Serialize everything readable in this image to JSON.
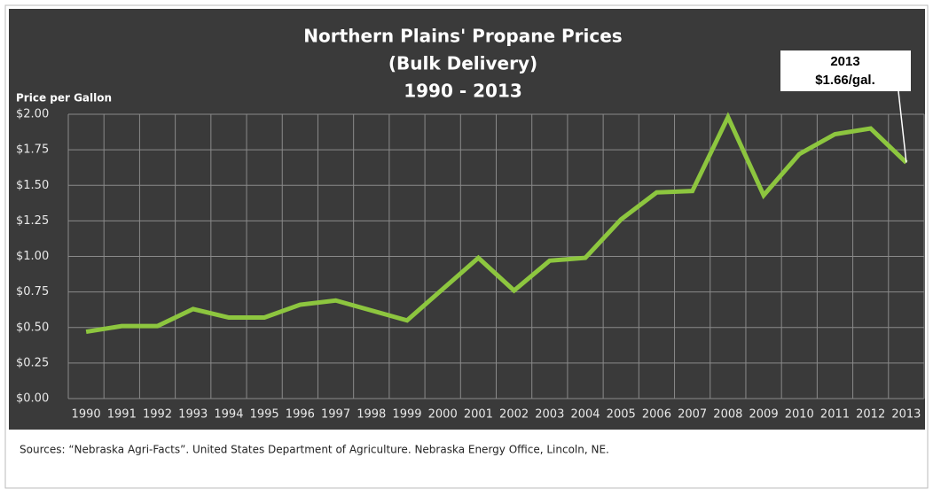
{
  "chart_data": {
    "type": "line",
    "title": [
      "Northern Plains' Propane Prices",
      "(Bulk Delivery)",
      "1990 - 2013"
    ],
    "y_label": "Price per Gallon",
    "annotation": [
      "2013",
      "$1.66/gal."
    ],
    "source": "Sources:  “Nebraska Agri-Facts”.  United States Department of Agriculture.  Nebraska Energy Office, Lincoln, NE.",
    "categories": [
      "1990",
      "1991",
      "1992",
      "1993",
      "1994",
      "1995",
      "1996",
      "1997",
      "1998",
      "1999",
      "2000",
      "2001",
      "2002",
      "2003",
      "2004",
      "2005",
      "2006",
      "2007",
      "2008",
      "2009",
      "2010",
      "2011",
      "2012",
      "2013"
    ],
    "series": [
      {
        "name": "Propane price",
        "color": "#8dc63f",
        "values": [
          0.47,
          0.51,
          0.51,
          0.63,
          0.57,
          0.57,
          0.66,
          0.69,
          0.62,
          0.55,
          0.77,
          0.99,
          0.76,
          0.97,
          0.99,
          1.26,
          1.45,
          1.46,
          1.98,
          1.43,
          1.72,
          1.86,
          1.9,
          1.66
        ]
      }
    ],
    "ylim": [
      0,
      2
    ],
    "yticks": [
      {
        "value": 0,
        "label": "$0.00"
      },
      {
        "value": 0.25,
        "label": "$0.25"
      },
      {
        "value": 0.5,
        "label": "$0.50"
      },
      {
        "value": 0.75,
        "label": "$0.75"
      },
      {
        "value": 1,
        "label": "$1.00"
      },
      {
        "value": 1.25,
        "label": "$1.25"
      },
      {
        "value": 1.5,
        "label": "$1.50"
      },
      {
        "value": 1.75,
        "label": "$1.75"
      },
      {
        "value": 2,
        "label": "$2.00"
      }
    ],
    "grid": true
  }
}
